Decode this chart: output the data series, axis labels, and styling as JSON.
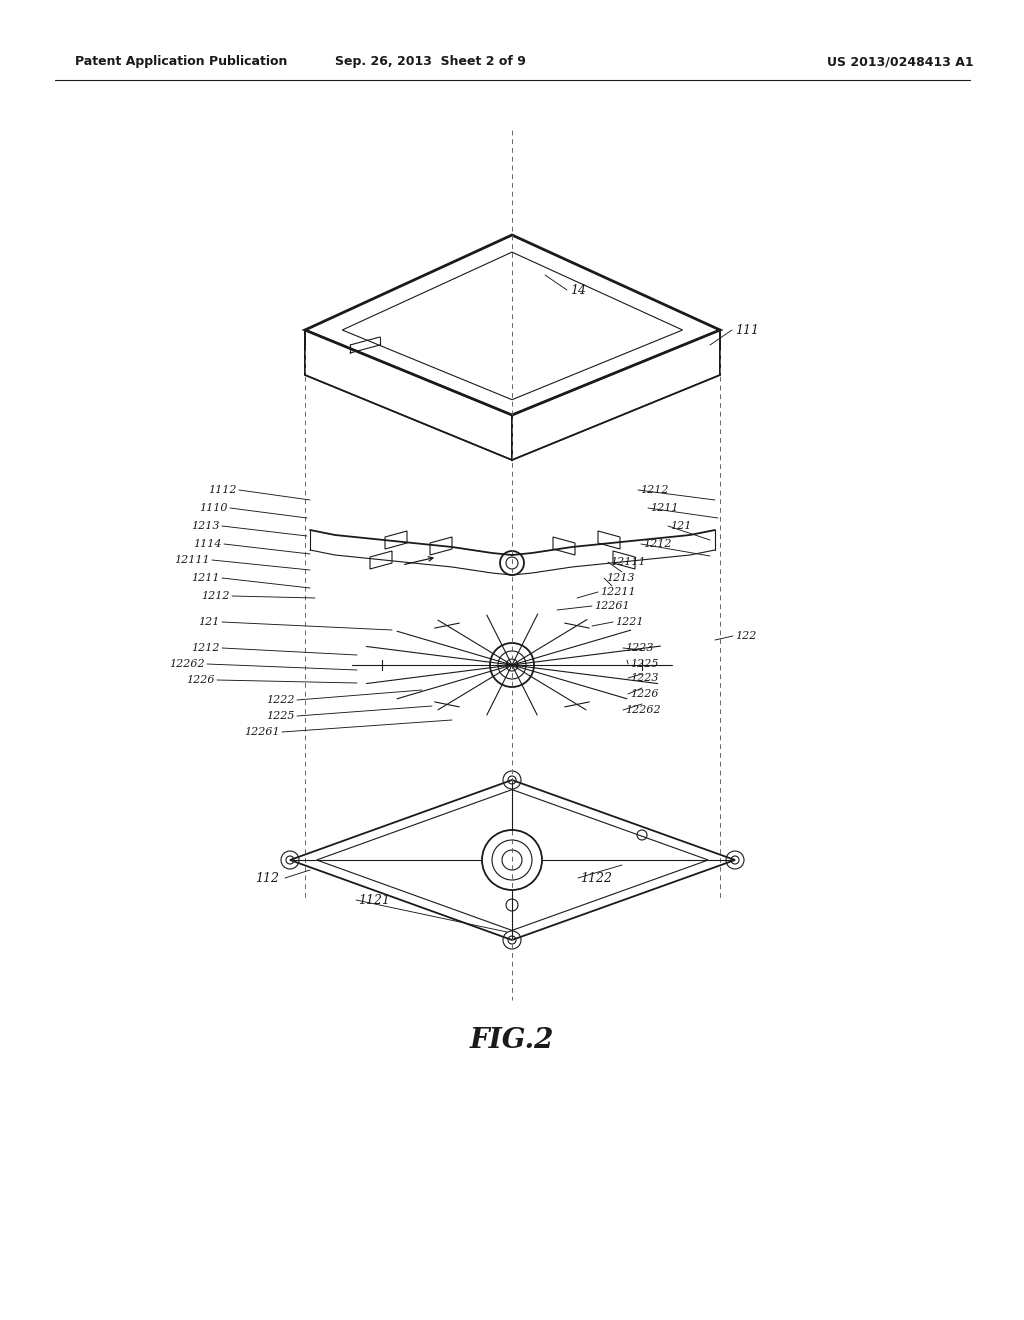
{
  "header_left": "Patent Application Publication",
  "header_middle": "Sep. 26, 2013  Sheet 2 of 9",
  "header_right": "US 2013/0248413 A1",
  "fig_caption": "FIG.2",
  "bg_color": "#ffffff",
  "line_color": "#1a1a1a"
}
